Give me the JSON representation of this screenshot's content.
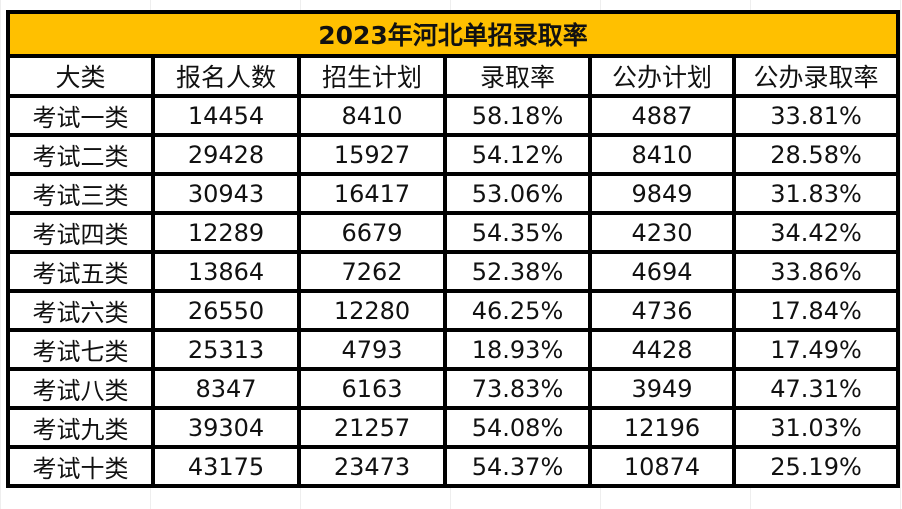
{
  "title": "2023年河北单招录取率",
  "colors": {
    "title_bg": "#FFC000",
    "border": "#000000"
  },
  "columns": [
    "大类",
    "报名人数",
    "招生计划",
    "录取率",
    "公办计划",
    "公办录取率"
  ],
  "rows": [
    [
      "考试一类",
      "14454",
      "8410",
      "58.18%",
      "4887",
      "33.81%"
    ],
    [
      "考试二类",
      "29428",
      "15927",
      "54.12%",
      "8410",
      "28.58%"
    ],
    [
      "考试三类",
      "30943",
      "16417",
      "53.06%",
      "9849",
      "31.83%"
    ],
    [
      "考试四类",
      "12289",
      "6679",
      "54.35%",
      "4230",
      "34.42%"
    ],
    [
      "考试五类",
      "13864",
      "7262",
      "52.38%",
      "4694",
      "33.86%"
    ],
    [
      "考试六类",
      "26550",
      "12280",
      "46.25%",
      "4736",
      "17.84%"
    ],
    [
      "考试七类",
      "25313",
      "4793",
      "18.93%",
      "4428",
      "17.49%"
    ],
    [
      "考试八类",
      "8347",
      "6163",
      "73.83%",
      "3949",
      "47.31%"
    ],
    [
      "考试九类",
      "39304",
      "21257",
      "54.08%",
      "12196",
      "31.03%"
    ],
    [
      "考试十类",
      "43175",
      "23473",
      "54.37%",
      "10874",
      "25.19%"
    ]
  ]
}
